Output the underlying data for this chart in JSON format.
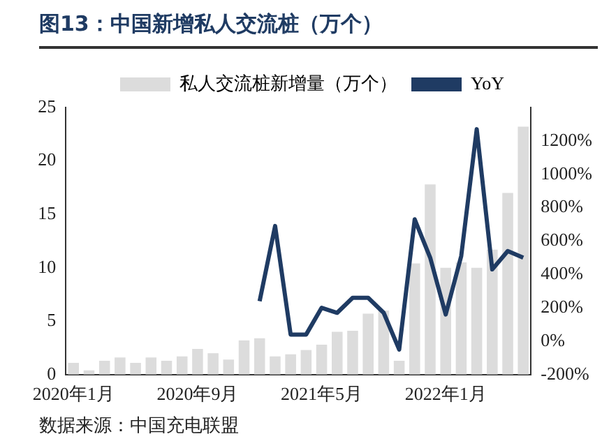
{
  "chart_data": {
    "type": "bar",
    "title": "图13：中国新增私人交流桩（万个）",
    "categories": [
      "2020年1月",
      null,
      null,
      null,
      null,
      null,
      null,
      null,
      "2020年9月",
      null,
      null,
      null,
      null,
      null,
      null,
      null,
      "2021年5月",
      null,
      null,
      null,
      null,
      null,
      null,
      null,
      "2022年1月",
      null,
      null,
      null,
      null,
      null
    ],
    "series": [
      {
        "name": "私人交流桩新增量（万个）",
        "color": "#dcdcdc",
        "values": [
          1.1,
          0.4,
          1.3,
          1.6,
          1.1,
          1.6,
          1.3,
          1.7,
          2.4,
          2.0,
          1.4,
          3.2,
          3.4,
          1.7,
          1.9,
          2.3,
          2.8,
          4.0,
          4.1,
          5.7,
          6.0,
          1.3,
          10.4,
          17.8,
          10.0,
          10.5,
          10.0,
          11.7,
          17.0,
          23.2
        ]
      },
      {
        "name": "YoY",
        "type": "line",
        "axis": "y2",
        "color": "#1f3b63",
        "values": [
          null,
          null,
          null,
          null,
          null,
          null,
          null,
          null,
          null,
          null,
          null,
          null,
          240,
          690,
          40,
          40,
          200,
          170,
          260,
          260,
          170,
          -50,
          730,
          500,
          160,
          510,
          1270,
          430,
          540,
          500
        ]
      }
    ],
    "ylim": [
      0,
      25
    ],
    "yticks": [
      0,
      5,
      10,
      15,
      20,
      25
    ],
    "y2lim": [
      -200,
      1400
    ],
    "y2ticks": [
      {
        "value": -200,
        "label": "-200%"
      },
      {
        "value": 0,
        "label": "0%"
      },
      {
        "value": 200,
        "label": "200%"
      },
      {
        "value": 400,
        "label": "400%"
      },
      {
        "value": 600,
        "label": "600%"
      },
      {
        "value": 800,
        "label": "800%"
      },
      {
        "value": 1000,
        "label": "1000%"
      },
      {
        "value": 1200,
        "label": "1200%"
      }
    ],
    "grid": false,
    "legend": "top",
    "marker": "none",
    "annotations": [
      "数据来源：中国充电联盟"
    ]
  }
}
